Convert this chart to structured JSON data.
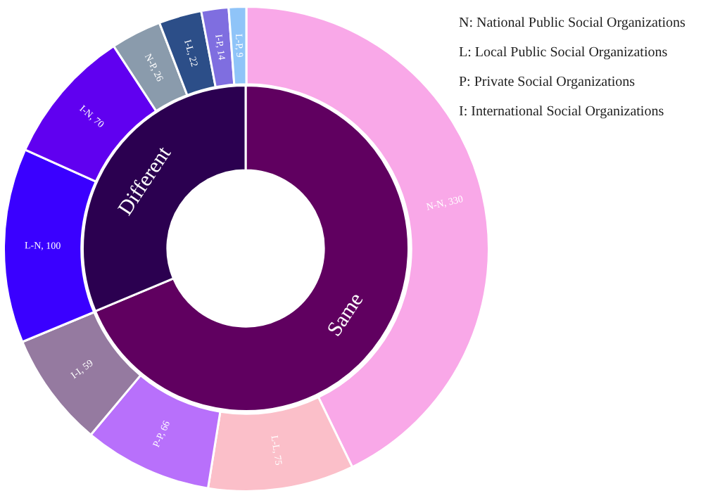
{
  "chart_data": [
    {
      "type": "donut",
      "categories": [
        "N-N, 330",
        "L-L, 75",
        "P-P, 66",
        "I-I, 59",
        "L-N, 100",
        "I-N, 70",
        "N-P, 26",
        "I-L, 22",
        "I-P, 14",
        "L-P, 9"
      ],
      "values": [
        330,
        75,
        66,
        59,
        100,
        70,
        26,
        22,
        14,
        9
      ],
      "colors": [
        "#f9a8e8",
        "#fbbfc9",
        "#b870fb",
        "#957aa0",
        "#3a00ff",
        "#6000f0",
        "#8a9bac",
        "#2c4e88",
        "#7f6ee0",
        "#8fc4f8"
      ],
      "annotations": [
        "N: National Public Social Organizations",
        "L: Local Public Social Organizations",
        "P: Private Social Organizations",
        "I: International Social Organizations"
      ]
    },
    {
      "type": "donut",
      "categories": [
        "Same",
        "Different"
      ],
      "values": [
        68.7,
        31.3
      ],
      "colors": [
        "#600060",
        "#2b0050"
      ]
    }
  ]
}
